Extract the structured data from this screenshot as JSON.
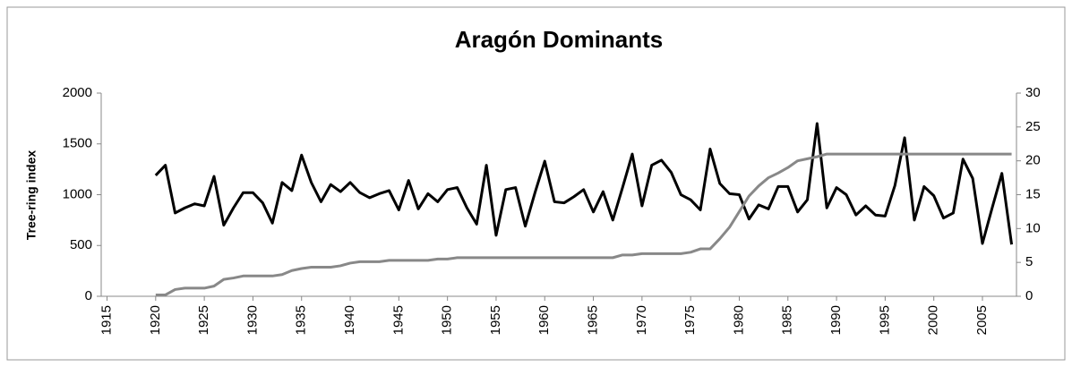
{
  "chart_data": {
    "type": "line",
    "title": "Aragón Dominants",
    "y_label": "Tree-ring index",
    "x": [
      1920,
      1921,
      1922,
      1923,
      1924,
      1925,
      1926,
      1927,
      1928,
      1929,
      1930,
      1931,
      1932,
      1933,
      1934,
      1935,
      1936,
      1937,
      1938,
      1939,
      1940,
      1941,
      1942,
      1943,
      1944,
      1945,
      1946,
      1947,
      1948,
      1949,
      1950,
      1951,
      1952,
      1953,
      1954,
      1955,
      1956,
      1957,
      1958,
      1959,
      1960,
      1961,
      1962,
      1963,
      1964,
      1965,
      1966,
      1967,
      1968,
      1969,
      1970,
      1971,
      1972,
      1973,
      1974,
      1975,
      1976,
      1977,
      1978,
      1979,
      1980,
      1981,
      1982,
      1983,
      1984,
      1985,
      1986,
      1987,
      1988,
      1989,
      1990,
      1991,
      1992,
      1993,
      1994,
      1995,
      1996,
      1997,
      1998,
      1999,
      2000,
      2001,
      2002,
      2003,
      2004,
      2005,
      2006,
      2007,
      2008
    ],
    "series": [
      {
        "color": "#000000",
        "axis": "y",
        "values": [
          1190,
          1290,
          820,
          870,
          910,
          890,
          1180,
          700,
          870,
          1020,
          1020,
          920,
          720,
          1120,
          1040,
          1390,
          1120,
          930,
          1100,
          1030,
          1120,
          1020,
          970,
          1010,
          1040,
          850,
          1140,
          860,
          1010,
          930,
          1050,
          1070,
          870,
          710,
          1290,
          600,
          1050,
          1070,
          690,
          1020,
          1330,
          930,
          920,
          980,
          1050,
          830,
          1030,
          750,
          1070,
          1400,
          890,
          1290,
          1340,
          1220,
          1000,
          950,
          850,
          1450,
          1110,
          1010,
          1000,
          760,
          900,
          860,
          1080,
          1080,
          830,
          950,
          1700,
          870,
          1070,
          1000,
          800,
          890,
          800,
          790,
          1090,
          1560,
          750,
          1080,
          990,
          770,
          820,
          1350,
          1160,
          520,
          870,
          1210,
          510
        ]
      },
      {
        "color": "#888888",
        "axis": "y2",
        "values": [
          0.2,
          0.2,
          1,
          1.2,
          1.2,
          1.2,
          1.5,
          2.5,
          2.7,
          3,
          3,
          3,
          3,
          3.2,
          3.8,
          4.1,
          4.3,
          4.3,
          4.3,
          4.5,
          4.9,
          5.1,
          5.1,
          5.1,
          5.3,
          5.3,
          5.3,
          5.3,
          5.3,
          5.5,
          5.5,
          5.7,
          5.7,
          5.7,
          5.7,
          5.7,
          5.7,
          5.7,
          5.7,
          5.7,
          5.7,
          5.7,
          5.7,
          5.7,
          5.7,
          5.7,
          5.7,
          5.7,
          6.1,
          6.1,
          6.3,
          6.3,
          6.3,
          6.3,
          6.3,
          6.5,
          7,
          7,
          8.5,
          10.2,
          12.5,
          14.8,
          16.3,
          17.5,
          18.2,
          19,
          20,
          20.3,
          20.6,
          21,
          21,
          21,
          21,
          21,
          21,
          21,
          21,
          21,
          21,
          21,
          21,
          21,
          21,
          21,
          21,
          21,
          21,
          21,
          21
        ]
      }
    ],
    "xlim": [
      1914.4,
      2008.5
    ],
    "xticks": [
      1915,
      1920,
      1925,
      1930,
      1935,
      1940,
      1945,
      1950,
      1955,
      1960,
      1965,
      1970,
      1975,
      1980,
      1985,
      1990,
      1995,
      2000,
      2005
    ],
    "ylim": [
      0,
      2000
    ],
    "yticks": [
      0,
      500,
      1000,
      1500,
      2000
    ],
    "y2lim": [
      0,
      30
    ],
    "y2ticks": [
      0,
      5,
      10,
      15,
      20,
      25,
      30
    ]
  }
}
